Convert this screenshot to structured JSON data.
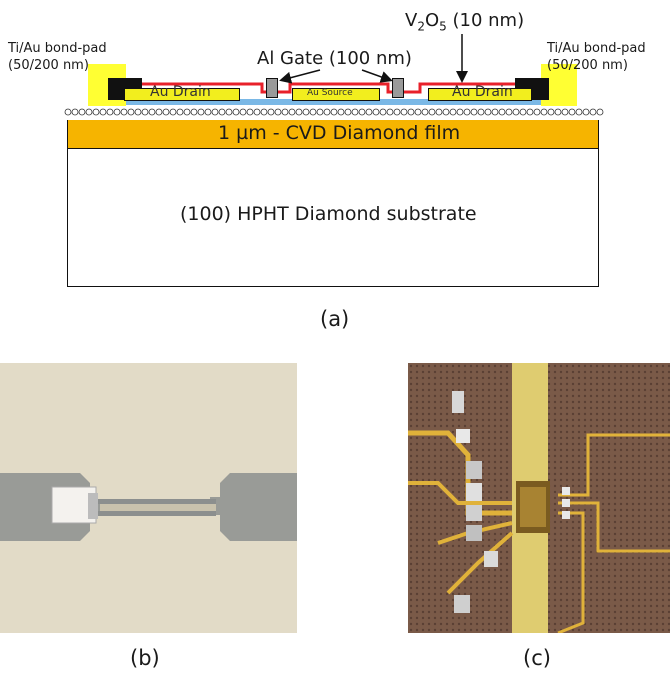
{
  "labels": {
    "left_pad_line1": "Ti/Au bond-pad",
    "left_pad_line2": "(50/200 nm)",
    "right_pad_line1": "Ti/Au bond-pad",
    "right_pad_line2": "(50/200 nm)",
    "gate": "Al Gate (100 nm)",
    "oxide_v": "V",
    "oxide_sub1": "2",
    "oxide_o": "O",
    "oxide_sub2": "5",
    "oxide_thickness": " (10 nm)",
    "drain_left": "Au Drain",
    "source": "Au Source",
    "drain_right": "Au Drain",
    "film": "1 µm - CVD Diamond film",
    "substrate": "(100) HPHT Diamond substrate"
  },
  "captions": {
    "a": "(a)",
    "b": "(b)",
    "c": "(c)"
  },
  "colors": {
    "bondpad": "#ffff33",
    "metal_dark": "#111111",
    "oxide_red": "#e8202a",
    "drain_yellow": "#f2ee1e",
    "film_orange": "#f6b400",
    "channel_blue": "#7ab8e6",
    "gate_grey": "#9a9a9a",
    "photo_b_bg": "#ddd4be",
    "photo_c_bg": "#6b4f3e",
    "photo_c_strip": "#d7c15a"
  }
}
